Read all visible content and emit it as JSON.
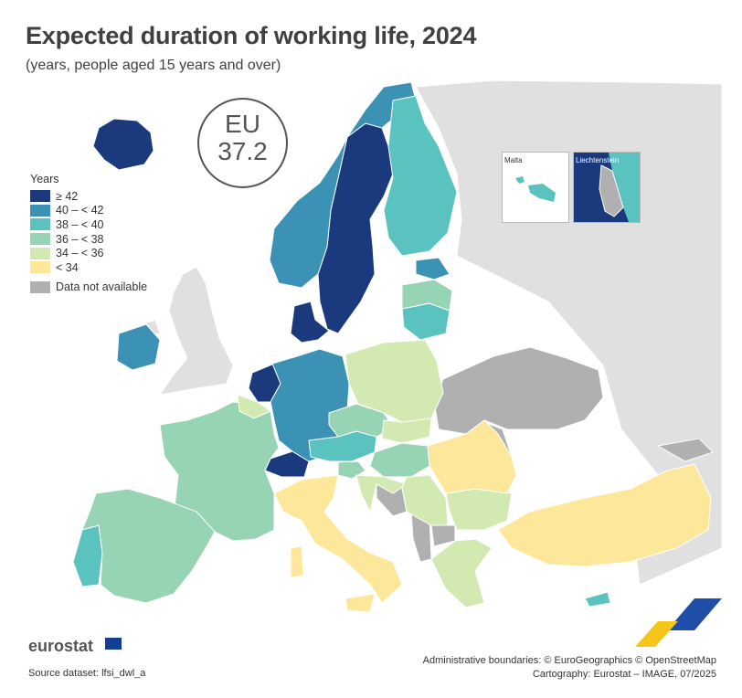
{
  "title": "Expected duration of working life, 2024",
  "subtitle": "(years, people aged 15 years and over)",
  "eu_badge": {
    "label": "EU",
    "value": "37.2"
  },
  "legend": {
    "title": "Years",
    "classes": [
      {
        "label": "≥ 42",
        "color": "#1b3a7e"
      },
      {
        "label": "40 – < 42",
        "color": "#3c92b4"
      },
      {
        "label": "38 – < 40",
        "color": "#5bc3bf"
      },
      {
        "label": "36 – < 38",
        "color": "#97d4b4"
      },
      {
        "label": "34 – < 36",
        "color": "#d2e9b1"
      },
      {
        "label": "< 34",
        "color": "#fde79a"
      }
    ],
    "na_label": "Data not available",
    "na_color": "#b0b0b0"
  },
  "insets": {
    "malta": "Malta",
    "liechtenstein": "Liechtenstein"
  },
  "countries": {
    "Iceland": "≥ 42",
    "Sweden": "≥ 42",
    "Denmark": "≥ 42",
    "Netherlands": "≥ 42",
    "Switzerland": "≥ 42",
    "Liechtenstein": "Data not available",
    "Norway": "40 – < 42",
    "Ireland": "40 – < 42",
    "Germany": "40 – < 42",
    "Estonia": "40 – < 42",
    "Finland": "38 – < 40",
    "Lithuania": "38 – < 40",
    "Austria": "38 – < 40",
    "Portugal": "38 – < 40",
    "Malta": "38 – < 40",
    "Cyprus": "38 – < 40",
    "France": "36 – < 38",
    "Spain": "36 – < 38",
    "Czechia": "36 – < 38",
    "Latvia": "36 – < 38",
    "Slovenia": "36 – < 38",
    "Hungary": "36 – < 38",
    "Belgium": "34 – < 36",
    "Poland": "34 – < 36",
    "Slovakia": "34 – < 36",
    "Croatia": "34 – < 36",
    "Bulgaria": "34 – < 36",
    "Greece": "34 – < 36",
    "Serbia": "34 – < 36",
    "Italy": "< 34",
    "Romania": "< 34",
    "Turkey": "< 34"
  },
  "footer": {
    "logo": "eurostat",
    "source": "Source dataset: lfsi_dwl_a",
    "credits_line1": "Administrative boundaries: © EuroGeographics © OpenStreetMap",
    "credits_line2": "Cartography: Eurostat – IMAGE, 07/2025"
  }
}
